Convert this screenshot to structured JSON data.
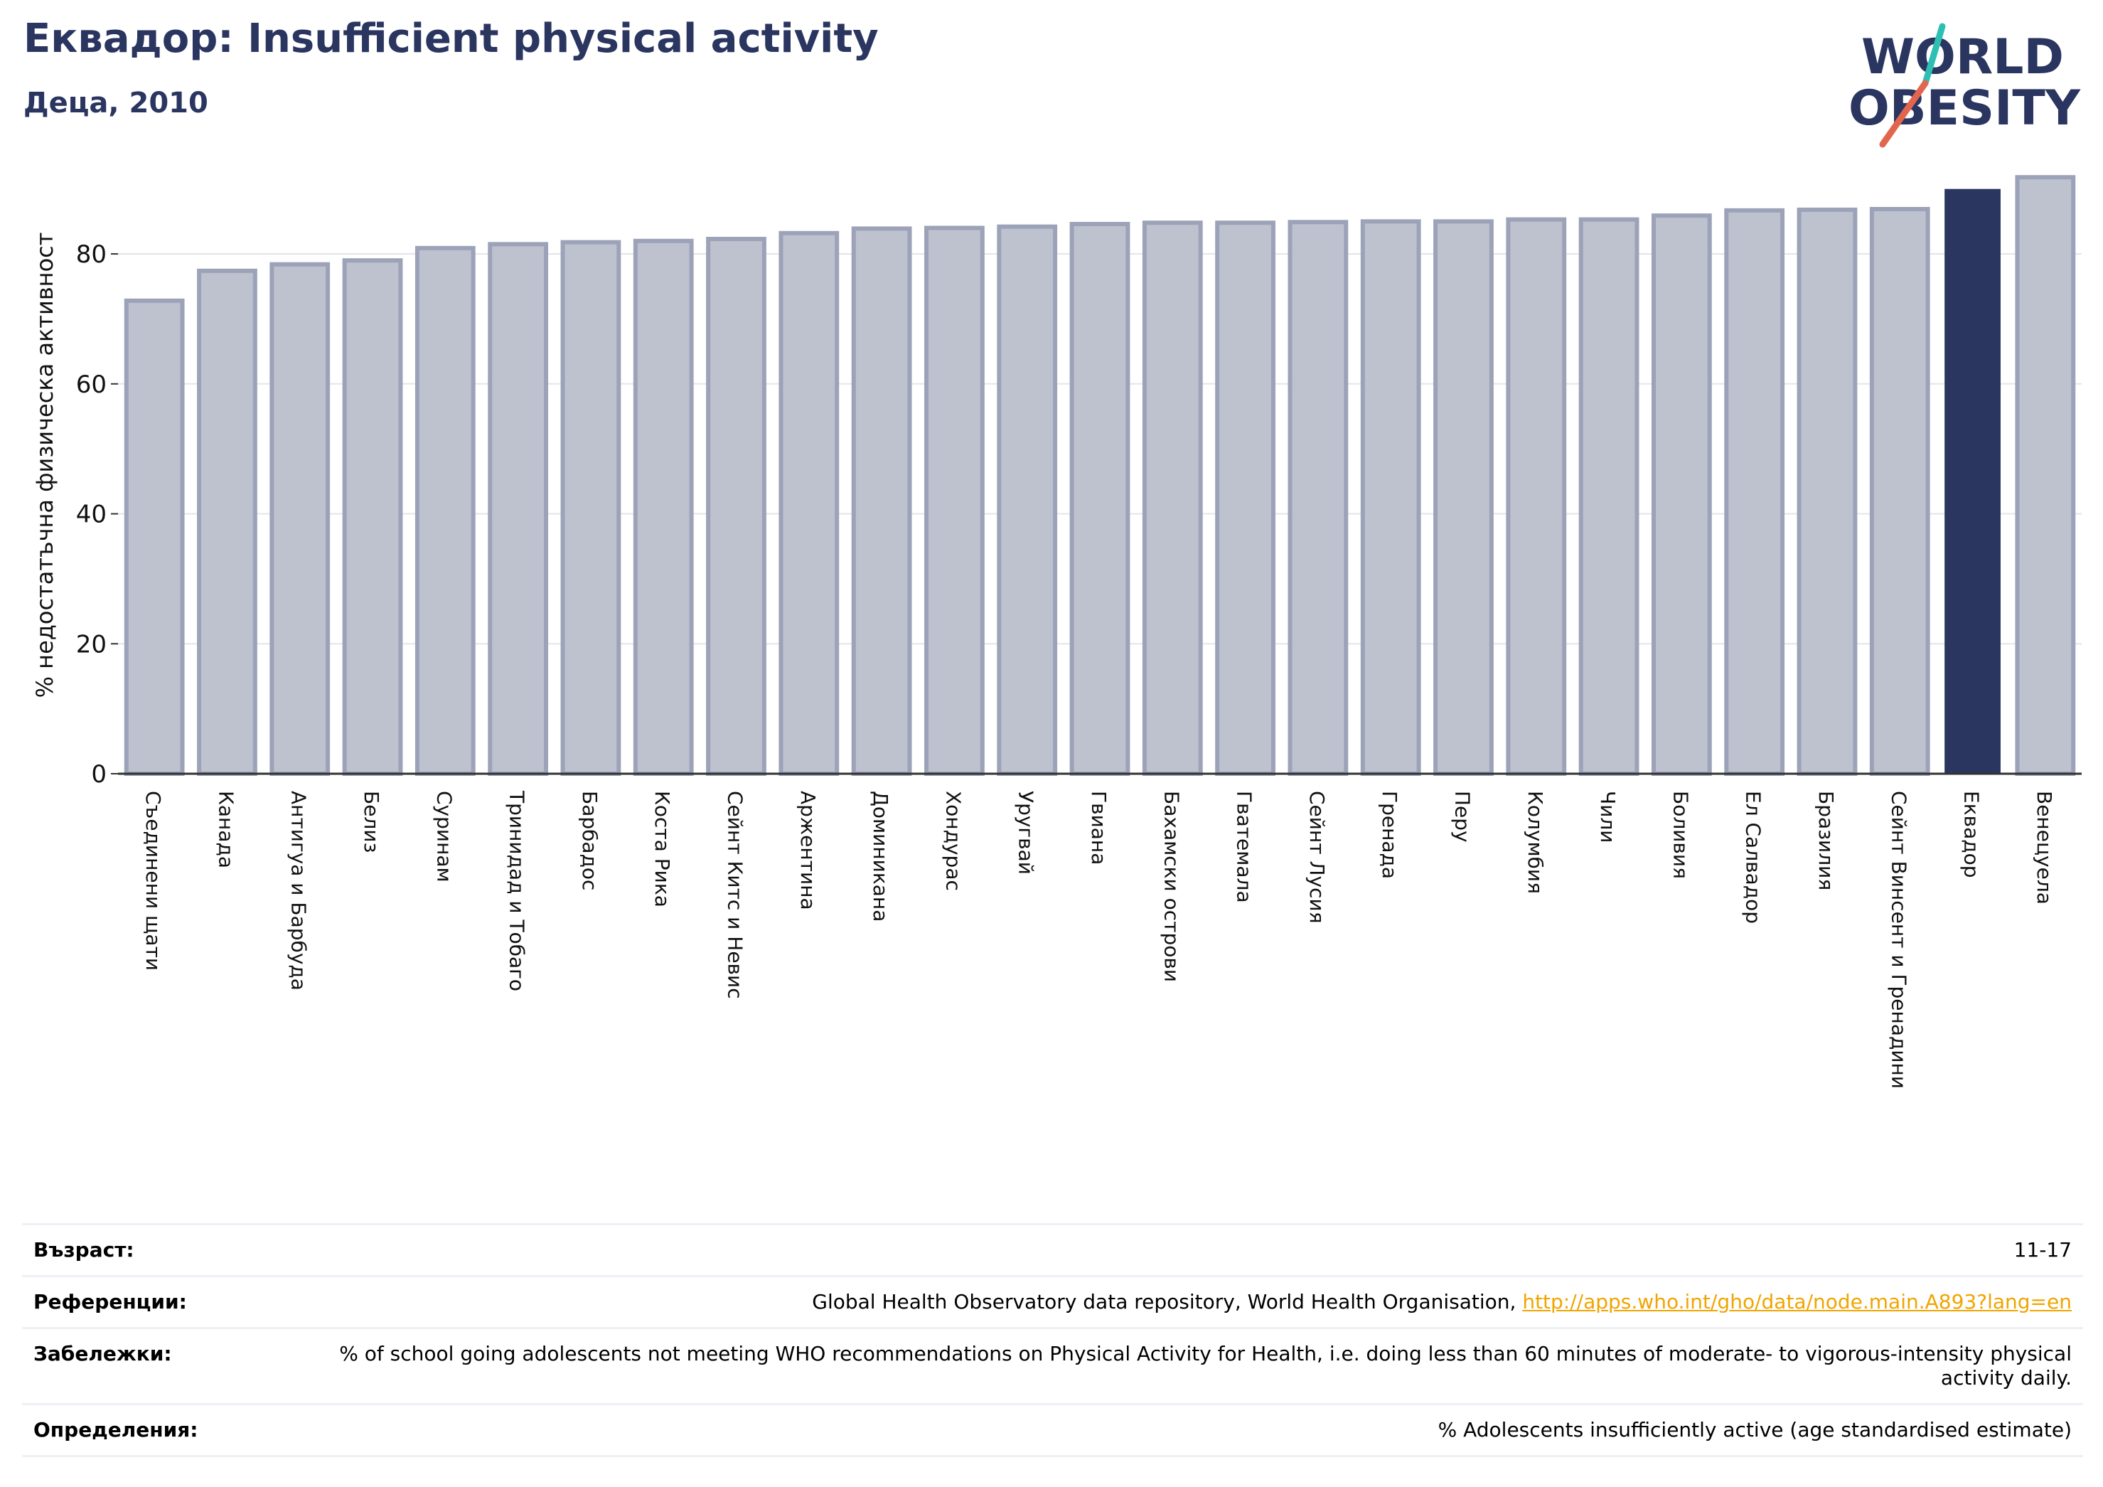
{
  "header": {
    "title": "Еквадор: Insufficient physical activity",
    "subtitle": "Деца, 2010"
  },
  "logo": {
    "line1": "WORLD",
    "line2": "OBESITY"
  },
  "chart_data": {
    "type": "bar",
    "title": "Еквадор: Insufficient physical activity",
    "subtitle": "Деца, 2010",
    "xlabel": "",
    "ylabel": "% недостатъчна физическа активност",
    "ylim": [
      0,
      95
    ],
    "yticks": [
      0,
      20,
      40,
      60,
      80
    ],
    "grid": true,
    "highlight": "Еквадор",
    "colors": {
      "bar": "#bec1ce",
      "bar_edge": "#9ca2b8",
      "highlight": "#2a3560",
      "grid": "#e3e5ea",
      "axis": "#333333"
    },
    "categories": [
      "Съединени щати",
      "Канада",
      "Антигуа и Барбуда",
      "Белиз",
      "Суринам",
      "Тринидад и Тобаго",
      "Барбадос",
      "Коста Рика",
      "Сейнт Китс и Невис",
      "Аржентина",
      "Доминикана",
      "Хондурас",
      "Уругвай",
      "Гвиана",
      "Бахамски острови",
      "Гватемала",
      "Сейнт Лусия",
      "Гренада",
      "Перу",
      "Колумбия",
      "Чили",
      "Боливия",
      "Ел Салвадор",
      "Бразилия",
      "Сейнт Винсент и Гренадини",
      "Еквадор",
      "Венецуела"
    ],
    "values": [
      72.8,
      77.4,
      78.4,
      79.0,
      80.9,
      81.5,
      81.8,
      82.0,
      82.3,
      83.2,
      83.9,
      84.0,
      84.2,
      84.6,
      84.8,
      84.8,
      84.9,
      85.0,
      85.0,
      85.3,
      85.3,
      85.9,
      86.7,
      86.8,
      86.9,
      90.0,
      91.8
    ]
  },
  "footer": {
    "age_label": "Възраст:",
    "age_value": "11-17",
    "refs_label": "Референции:",
    "refs_text": "Global Health Observatory data repository, World Health Organisation, ",
    "refs_link": "http://apps.who.int/gho/data/node.main.A893?lang=en",
    "notes_label": "Забележки:",
    "notes_value": "% of school going adolescents not meeting WHO recommendations on Physical Activity for Health, i.e. doing less than 60 minutes of moderate- to vigorous-intensity physical activity daily.",
    "defs_label": "Определения:",
    "defs_value": "% Adolescents insufficiently active (age standardised estimate)"
  }
}
